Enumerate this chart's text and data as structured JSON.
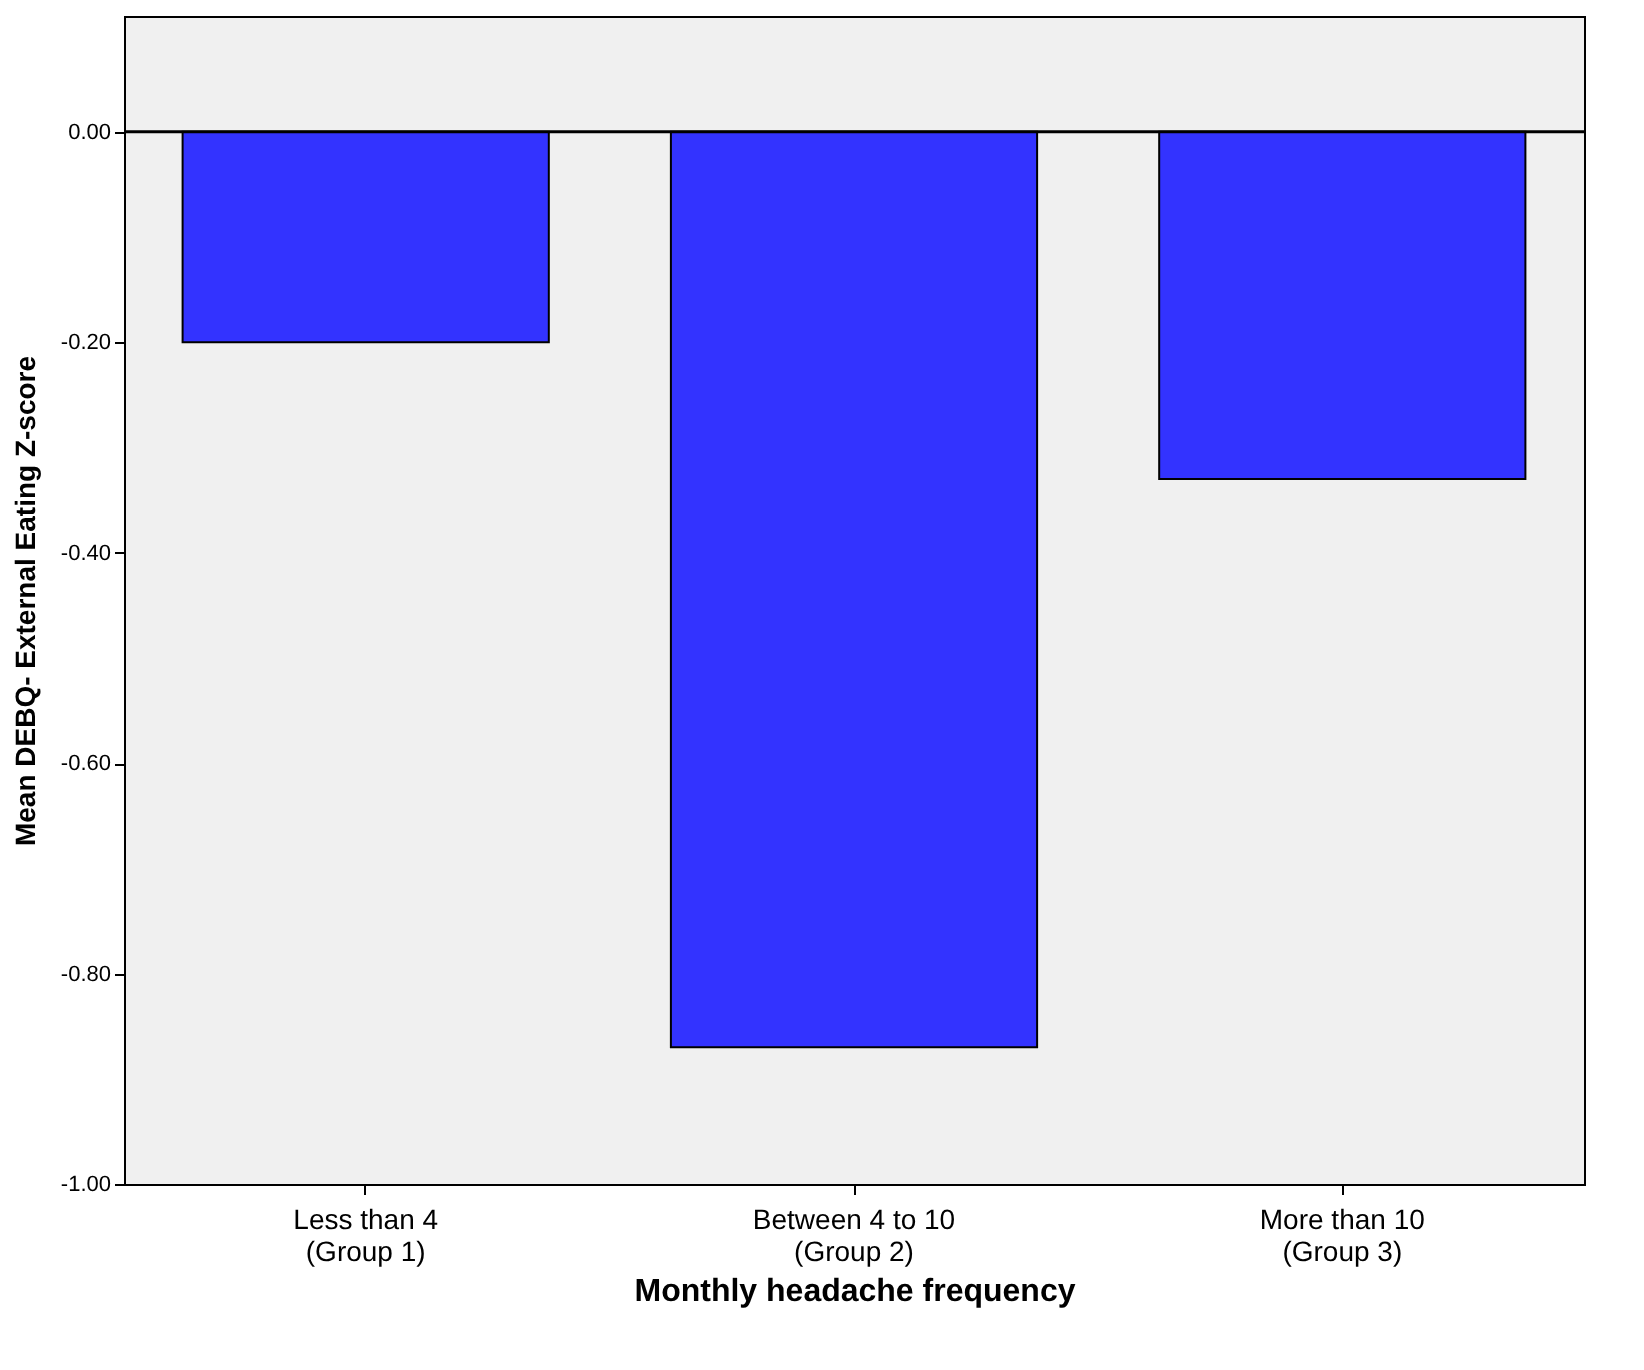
{
  "chart_data": {
    "type": "bar",
    "xlabel": "Monthly headache frequency",
    "ylabel": "Mean DEBQ- External Eating Z-score",
    "categories": [
      "Less than 4\n(Group 1)",
      "Between 4 to 10\n(Group 2)",
      "More than 10\n(Group 3)"
    ],
    "values": [
      -0.2,
      -0.87,
      -0.33
    ],
    "color": "#3333ff",
    "ylim": [
      -1.0,
      0.11
    ],
    "yticks": [
      {
        "value": -1,
        "label": "-1.00"
      },
      {
        "value": -0.8,
        "label": "-0.80"
      },
      {
        "value": -0.6,
        "label": "-0.60"
      },
      {
        "value": -0.4,
        "label": "-0.40"
      },
      {
        "value": -0.2,
        "label": "-0.20"
      },
      {
        "value": 0,
        "label": "0.00"
      }
    ],
    "ref_lines": [
      {
        "axis": "y",
        "value": 0,
        "color": "#000000"
      }
    ],
    "grid": false
  }
}
